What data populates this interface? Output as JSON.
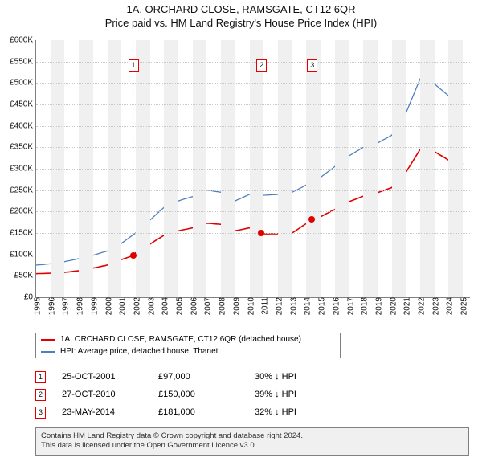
{
  "title_line1": "1A, ORCHARD CLOSE, RAMSGATE, CT12 6QR",
  "title_line2": "Price paid vs. HM Land Registry's House Price Index (HPI)",
  "chart": {
    "type": "line",
    "xmin": 1995,
    "xmax": 2025.5,
    "ymin": 0,
    "ymax": 600000,
    "ytick_step": 50000,
    "ytick_prefix": "£",
    "ytick_suffix": "K",
    "x_ticks": [
      1995,
      1996,
      1997,
      1998,
      1999,
      2000,
      2001,
      2002,
      2003,
      2004,
      2005,
      2006,
      2007,
      2008,
      2009,
      2010,
      2011,
      2012,
      2013,
      2014,
      2015,
      2016,
      2017,
      2018,
      2019,
      2020,
      2021,
      2022,
      2023,
      2024,
      2025
    ],
    "band_color": "#f0f0f0",
    "grid_color": "#C8C8C8",
    "bg_color": "#ffffff",
    "series": [
      {
        "name": "hpi",
        "label": "HPI: Average price, detached house, Thanet",
        "color": "#4F81BD",
        "width": 1.3,
        "points": [
          [
            1995,
            75000
          ],
          [
            1996,
            78000
          ],
          [
            1997,
            83000
          ],
          [
            1998,
            90000
          ],
          [
            1999,
            98000
          ],
          [
            2000,
            108000
          ],
          [
            2001,
            126000
          ],
          [
            2002,
            150000
          ],
          [
            2003,
            180000
          ],
          [
            2004,
            210000
          ],
          [
            2005,
            225000
          ],
          [
            2006,
            235000
          ],
          [
            2007,
            250000
          ],
          [
            2008,
            245000
          ],
          [
            2008.7,
            218000
          ],
          [
            2009,
            225000
          ],
          [
            2010,
            240000
          ],
          [
            2011,
            238000
          ],
          [
            2012,
            240000
          ],
          [
            2013,
            245000
          ],
          [
            2014,
            262000
          ],
          [
            2015,
            280000
          ],
          [
            2016,
            305000
          ],
          [
            2017,
            330000
          ],
          [
            2018,
            350000
          ],
          [
            2019,
            360000
          ],
          [
            2020,
            378000
          ],
          [
            2021,
            430000
          ],
          [
            2022,
            510000
          ],
          [
            2022.7,
            525000
          ],
          [
            2023,
            498000
          ],
          [
            2024,
            470000
          ],
          [
            2025,
            455000
          ]
        ]
      },
      {
        "name": "subject",
        "label": "1A, ORCHARD CLOSE, RAMSGATE, CT12 6QR (detached house)",
        "color": "#E10000",
        "width": 1.6,
        "points": [
          [
            1995,
            55000
          ],
          [
            1996,
            56000
          ],
          [
            1997,
            58000
          ],
          [
            1998,
            62000
          ],
          [
            1999,
            68000
          ],
          [
            2000,
            75000
          ],
          [
            2001,
            88000
          ],
          [
            2001.8,
            97000
          ],
          [
            2002,
            104000
          ],
          [
            2003,
            124000
          ],
          [
            2004,
            145000
          ],
          [
            2005,
            155000
          ],
          [
            2006,
            162000
          ],
          [
            2007,
            173000
          ],
          [
            2008,
            170000
          ],
          [
            2008.7,
            150000
          ],
          [
            2009,
            155000
          ],
          [
            2010,
            162000
          ],
          [
            2010.8,
            150000
          ],
          [
            2011,
            148000
          ],
          [
            2012,
            148000
          ],
          [
            2013,
            150000
          ],
          [
            2014.4,
            181000
          ],
          [
            2015,
            188000
          ],
          [
            2016,
            205000
          ],
          [
            2017,
            223000
          ],
          [
            2018,
            236000
          ],
          [
            2019,
            244000
          ],
          [
            2020,
            256000
          ],
          [
            2021,
            292000
          ],
          [
            2022,
            345000
          ],
          [
            2022.7,
            358000
          ],
          [
            2023,
            340000
          ],
          [
            2024,
            320000
          ],
          [
            2025,
            310000
          ]
        ]
      }
    ],
    "sale_markers": [
      {
        "n": "1",
        "x": 2001.81,
        "y": 97000,
        "label_y": 555000
      },
      {
        "n": "2",
        "x": 2010.82,
        "y": 150000,
        "label_y": 555000
      },
      {
        "n": "3",
        "x": 2014.39,
        "y": 181000,
        "label_y": 555000
      }
    ]
  },
  "legend": {
    "border_color": "#808080",
    "rows": [
      {
        "swatch": "#E10000",
        "text": "1A, ORCHARD CLOSE, RAMSGATE, CT12 6QR (detached house)"
      },
      {
        "swatch": "#4F81BD",
        "text": "HPI: Average price, detached house, Thanet"
      }
    ]
  },
  "transactions": [
    {
      "n": "1",
      "date": "25-OCT-2001",
      "price": "£97,000",
      "diff": "30% ↓ HPI"
    },
    {
      "n": "2",
      "date": "27-OCT-2010",
      "price": "£150,000",
      "diff": "39% ↓ HPI"
    },
    {
      "n": "3",
      "date": "23-MAY-2014",
      "price": "£181,000",
      "diff": "32% ↓ HPI"
    }
  ],
  "footer_line1": "Contains HM Land Registry data © Crown copyright and database right 2024.",
  "footer_line2": "This data is licensed under the Open Government Licence v3.0.",
  "footer_bg": "#f0f0f0"
}
